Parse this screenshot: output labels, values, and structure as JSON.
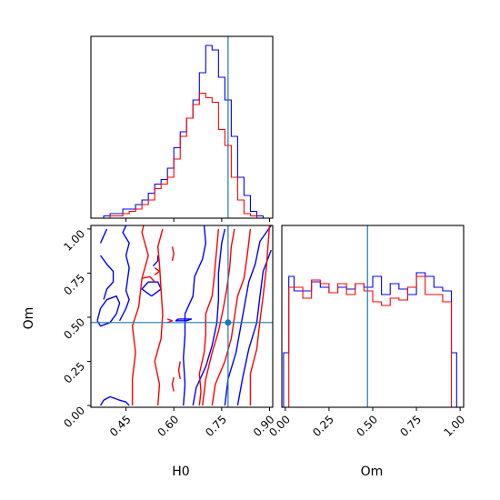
{
  "chart_data": {
    "type": "corner",
    "parameters": [
      "H0",
      "Om"
    ],
    "truths": {
      "H0": 0.77,
      "Om": 0.47
    },
    "truth_color": "#1f77b4",
    "series": [
      {
        "color": "#0000ff"
      },
      {
        "color": "#ff0000"
      }
    ],
    "panels": [
      {
        "id": "h0-marginal",
        "type": "histogram",
        "parameter": "H0",
        "xlim": [
          0.34,
          0.91
        ],
        "x_ticks": [
          0.45,
          0.6,
          0.75,
          0.9
        ],
        "bins": [
          0.34,
          0.36,
          0.38,
          0.4,
          0.42,
          0.44,
          0.46,
          0.48,
          0.5,
          0.52,
          0.54,
          0.56,
          0.58,
          0.6,
          0.62,
          0.64,
          0.66,
          0.68,
          0.7,
          0.72,
          0.74,
          0.76,
          0.78,
          0.8,
          0.82,
          0.84,
          0.86,
          0.88,
          0.9
        ],
        "counts": [
          [
            0,
            0,
            1,
            2,
            2,
            4,
            4,
            6,
            8,
            11,
            15,
            17,
            22,
            31,
            38,
            44,
            52,
            64,
            76,
            74,
            62,
            52,
            36,
            18,
            10,
            3,
            1,
            0
          ],
          [
            0,
            0,
            0,
            1,
            1,
            2,
            3,
            4,
            6,
            8,
            13,
            15,
            18,
            26,
            36,
            44,
            50,
            55,
            53,
            51,
            39,
            32,
            18,
            8,
            2,
            1,
            0,
            0
          ]
        ],
        "ymax": 80
      },
      {
        "id": "h0-om-joint",
        "type": "contour",
        "x": "H0",
        "y": "Om",
        "xlim": [
          0.34,
          0.91
        ],
        "ylim": [
          -0.01,
          1.02
        ],
        "x_ticks": [
          0.45,
          0.6,
          0.75,
          0.9
        ],
        "y_ticks": [
          0.0,
          0.25,
          0.5,
          0.75,
          1.0
        ],
        "contours": [
          {
            "color": "#0000ff",
            "lines": [
              [
                [
                  0.66,
                  0.0
                ],
                [
                  0.67,
                  0.1
                ],
                [
                  0.7,
                  0.22
                ],
                [
                  0.72,
                  0.34
                ],
                [
                  0.735,
                  0.47
                ],
                [
                  0.74,
                  0.6
                ],
                [
                  0.74,
                  0.75
                ],
                [
                  0.75,
                  0.92
                ],
                [
                  0.76,
                  1.0
                ]
              ],
              [
                [
                  0.76,
                  0.0
                ],
                [
                  0.77,
                  0.15
                ],
                [
                  0.795,
                  0.3
                ],
                [
                  0.81,
                  0.45
                ],
                [
                  0.825,
                  0.6
                ],
                [
                  0.835,
                  0.7
                ],
                [
                  0.855,
                  0.8
                ],
                [
                  0.87,
                  0.93
                ],
                [
                  0.905,
                  1.02
                ]
              ],
              [
                [
                  0.63,
                  0.0
                ],
                [
                  0.635,
                  0.12
                ],
                [
                  0.63,
                  0.27
                ],
                [
                  0.635,
                  0.4
                ],
                [
                  0.635,
                  0.52
                ],
                [
                  0.66,
                  0.62
                ],
                [
                  0.665,
                  0.73
                ],
                [
                  0.69,
                  0.83
                ],
                [
                  0.7,
                  0.92
                ],
                [
                  0.695,
                  1.02
                ]
              ],
              [
                [
                  0.8,
                  0.0
                ],
                [
                  0.815,
                  0.15
                ],
                [
                  0.835,
                  0.32
                ],
                [
                  0.86,
                  0.47
                ],
                [
                  0.87,
                  0.62
                ],
                [
                  0.88,
                  0.76
                ],
                [
                  0.905,
                  0.88
                ]
              ],
              [
                [
                  0.605,
                  0.48
                ],
                [
                  0.615,
                  0.49
                ],
                [
                  0.655,
                  0.49
                ],
                [
                  0.64,
                  0.48
                ],
                [
                  0.605,
                  0.48
                ]
              ],
              [
                [
                  0.37,
                  0.0
                ],
                [
                  0.38,
                  0.03
                ],
                [
                  0.4,
                  0.05
                ],
                [
                  0.43,
                  0.03
                ],
                [
                  0.45,
                  0.02
                ],
                [
                  0.46,
                  0.0
                ]
              ],
              [
                [
                  0.36,
                  0.48
                ],
                [
                  0.37,
                  0.55
                ],
                [
                  0.39,
                  0.6
                ],
                [
                  0.42,
                  0.62
                ],
                [
                  0.43,
                  0.58
                ],
                [
                  0.42,
                  0.52
                ],
                [
                  0.4,
                  0.47
                ],
                [
                  0.37,
                  0.45
                ],
                [
                  0.36,
                  0.48
                ]
              ],
              [
                [
                  0.43,
                  0.48
                ],
                [
                  0.45,
                  0.55
                ],
                [
                  0.46,
                  0.6
                ],
                [
                  0.45,
                  0.65
                ],
                [
                  0.46,
                  0.78
                ],
                [
                  0.45,
                  0.85
                ],
                [
                  0.46,
                  0.92
                ],
                [
                  0.44,
                  0.98
                ],
                [
                  0.45,
                  1.02
                ]
              ],
              [
                [
                  0.38,
                  0.6
                ],
                [
                  0.39,
                  0.66
                ],
                [
                  0.41,
                  0.7
                ],
                [
                  0.41,
                  0.76
                ],
                [
                  0.39,
                  0.8
                ],
                [
                  0.37,
                  0.85
                ]
              ],
              [
                [
                  0.37,
                  0.92
                ],
                [
                  0.38,
                  0.96
                ],
                [
                  0.39,
                  1.0
                ]
              ],
              [
                [
                  0.53,
                  0.62
                ],
                [
                  0.56,
                  0.66
                ],
                [
                  0.55,
                  0.7
                ],
                [
                  0.52,
                  0.7
                ],
                [
                  0.5,
                  0.66
                ],
                [
                  0.53,
                  0.62
                ]
              ],
              [
                [
                  0.535,
                  0.79
                ],
                [
                  0.55,
                  0.82
                ],
                [
                  0.55,
                  0.85
                ]
              ]
            ]
          },
          {
            "color": "#ff0000",
            "lines": [
              [
                [
                  0.69,
                  0.0
                ],
                [
                  0.7,
                  0.15
                ],
                [
                  0.72,
                  0.3
                ],
                [
                  0.74,
                  0.42
                ],
                [
                  0.755,
                  0.55
                ],
                [
                  0.765,
                  0.65
                ],
                [
                  0.775,
                  0.78
                ],
                [
                  0.78,
                  0.9
                ],
                [
                  0.79,
                  1.0
                ]
              ],
              [
                [
                  0.72,
                  0.0
                ],
                [
                  0.73,
                  0.12
                ],
                [
                  0.76,
                  0.25
                ],
                [
                  0.78,
                  0.38
                ],
                [
                  0.79,
                  0.5
                ],
                [
                  0.8,
                  0.62
                ],
                [
                  0.82,
                  0.72
                ],
                [
                  0.83,
                  0.85
                ],
                [
                  0.84,
                  1.0
                ]
              ],
              [
                [
                  0.68,
                  0.0
                ],
                [
                  0.685,
                  0.08
                ],
                [
                  0.68,
                  0.18
                ],
                [
                  0.695,
                  0.3
                ],
                [
                  0.7,
                  0.4
                ],
                [
                  0.7,
                  0.52
                ],
                [
                  0.72,
                  0.62
                ],
                [
                  0.725,
                  0.7
                ],
                [
                  0.73,
                  0.8
                ],
                [
                  0.735,
                  0.9
                ],
                [
                  0.74,
                  1.0
                ]
              ],
              [
                [
                  0.84,
                  0.0
                ],
                [
                  0.84,
                  0.18
                ],
                [
                  0.86,
                  0.32
                ],
                [
                  0.87,
                  0.48
                ],
                [
                  0.88,
                  0.62
                ],
                [
                  0.89,
                  0.78
                ],
                [
                  0.9,
                  1.02
                ]
              ],
              [
                [
                  0.47,
                  0.0
                ],
                [
                  0.47,
                  0.15
                ],
                [
                  0.48,
                  0.3
                ],
                [
                  0.47,
                  0.45
                ],
                [
                  0.49,
                  0.56
                ],
                [
                  0.5,
                  0.72
                ],
                [
                  0.52,
                  0.85
                ],
                [
                  0.5,
                  0.98
                ],
                [
                  0.505,
                  1.02
                ]
              ],
              [
                [
                  0.55,
                  0.0
                ],
                [
                  0.555,
                  0.12
                ],
                [
                  0.54,
                  0.25
                ],
                [
                  0.56,
                  0.38
                ],
                [
                  0.565,
                  0.52
                ],
                [
                  0.56,
                  0.65
                ],
                [
                  0.555,
                  0.8
                ],
                [
                  0.55,
                  0.9
                ],
                [
                  0.565,
                  1.0
                ]
              ],
              [
                [
                  0.5,
                  0.72
                ],
                [
                  0.525,
                  0.73
                ],
                [
                  0.54,
                  0.7
                ]
              ],
              [
                [
                  0.6,
                  0.08
                ],
                [
                  0.595,
                  0.12
                ],
                [
                  0.6,
                  0.16
                ]
              ],
              [
                [
                  0.62,
                  0.15
                ],
                [
                  0.615,
                  0.2
                ],
                [
                  0.62,
                  0.25
                ]
              ],
              [
                [
                  0.595,
                  0.82
                ],
                [
                  0.6,
                  0.86
                ],
                [
                  0.595,
                  0.9
                ]
              ],
              [
                [
                  0.54,
                  0.74
                ],
                [
                  0.555,
                  0.76
                ],
                [
                  0.54,
                  0.78
                ]
              ],
              [
                [
                  0.58,
                  0.47
                ],
                [
                  0.595,
                  0.48
                ],
                [
                  0.58,
                  0.49
                ]
              ]
            ]
          }
        ]
      },
      {
        "id": "om-marginal",
        "type": "histogram",
        "parameter": "Om",
        "xlim": [
          -0.02,
          1.02
        ],
        "x_ticks": [
          0.0,
          0.25,
          0.5,
          0.75,
          1.0
        ],
        "bins": [
          -0.01,
          0.02,
          0.05,
          0.1,
          0.15,
          0.2,
          0.25,
          0.3,
          0.35,
          0.4,
          0.45,
          0.5,
          0.55,
          0.6,
          0.65,
          0.7,
          0.75,
          0.8,
          0.85,
          0.9,
          0.95,
          0.98,
          1.01
        ],
        "counts": [
          [
            30,
            72,
            64,
            64,
            69,
            66,
            63,
            66,
            65,
            68,
            66,
            72,
            62,
            68,
            65,
            62,
            74,
            72,
            66,
            64,
            30,
            0
          ],
          [
            0,
            66,
            66,
            60,
            70,
            68,
            63,
            68,
            62,
            68,
            64,
            58,
            56,
            60,
            59,
            66,
            72,
            62,
            62,
            58,
            0,
            0
          ]
        ],
        "ymax": 100
      }
    ]
  }
}
